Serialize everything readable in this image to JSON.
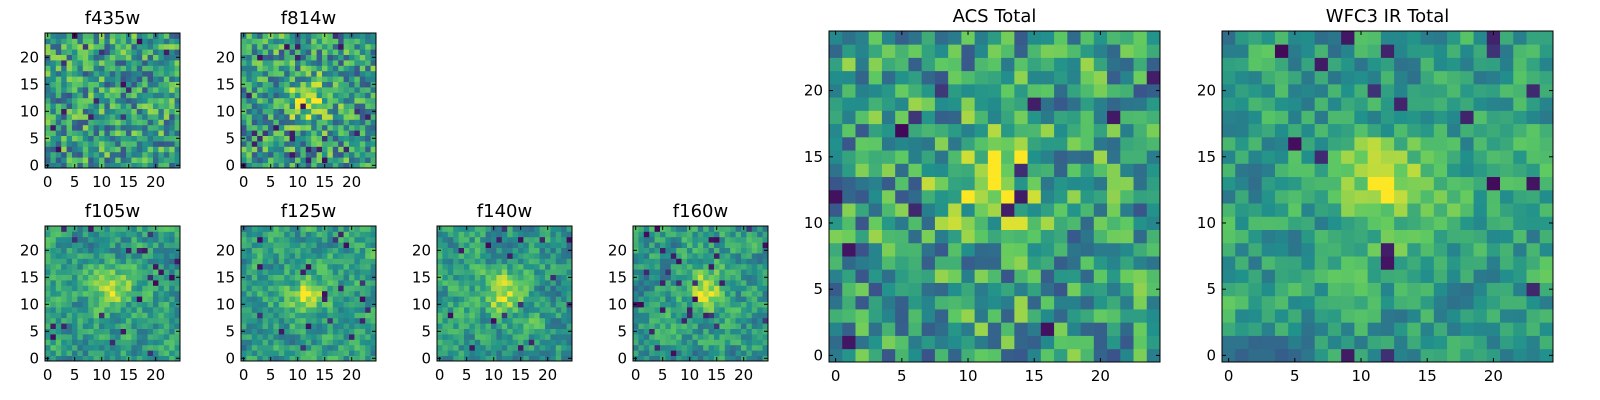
{
  "colormap": "viridis",
  "colormap_stops": [
    "#440154",
    "#3b528b",
    "#21918c",
    "#5ec962",
    "#fde725"
  ],
  "chart_data": [
    {
      "type": "heatmap",
      "title": "f435w",
      "xticks": [
        "0",
        "5",
        "10",
        "15",
        "20"
      ],
      "yticks": [
        "0",
        "5",
        "10",
        "15",
        "20"
      ],
      "xlim": [
        0,
        25
      ],
      "ylim": [
        0,
        25
      ],
      "grid_size": 25,
      "bright_center": null,
      "texture": "noisy",
      "seed": 11
    },
    {
      "type": "heatmap",
      "title": "f814w",
      "xticks": [
        "0",
        "5",
        "10",
        "15",
        "20"
      ],
      "yticks": [
        "0",
        "5",
        "10",
        "15",
        "20"
      ],
      "xlim": [
        0,
        25
      ],
      "ylim": [
        0,
        25
      ],
      "grid_size": 25,
      "bright_center": [
        12,
        12
      ],
      "texture": "noisy",
      "seed": 23
    },
    {
      "type": "heatmap",
      "title": "f105w",
      "xticks": [
        "0",
        "5",
        "10",
        "15",
        "20"
      ],
      "yticks": [
        "0",
        "5",
        "10",
        "15",
        "20"
      ],
      "xlim": [
        0,
        25
      ],
      "ylim": [
        0,
        25
      ],
      "grid_size": 25,
      "bright_center": [
        12,
        13
      ],
      "texture": "smooth",
      "seed": 37
    },
    {
      "type": "heatmap",
      "title": "f125w",
      "xticks": [
        "0",
        "5",
        "10",
        "15",
        "20"
      ],
      "yticks": [
        "0",
        "5",
        "10",
        "15",
        "20"
      ],
      "xlim": [
        0,
        25
      ],
      "ylim": [
        0,
        25
      ],
      "grid_size": 25,
      "bright_center": [
        12,
        12
      ],
      "texture": "smooth",
      "seed": 41
    },
    {
      "type": "heatmap",
      "title": "f140w",
      "xticks": [
        "0",
        "5",
        "10",
        "15",
        "20"
      ],
      "yticks": [
        "0",
        "5",
        "10",
        "15",
        "20"
      ],
      "xlim": [
        0,
        25
      ],
      "ylim": [
        0,
        25
      ],
      "grid_size": 25,
      "bright_center": [
        12,
        12
      ],
      "texture": "smooth",
      "seed": 53
    },
    {
      "type": "heatmap",
      "title": "f160w",
      "xticks": [
        "0",
        "5",
        "10",
        "15",
        "20"
      ],
      "yticks": [
        "0",
        "5",
        "10",
        "15",
        "20"
      ],
      "xlim": [
        0,
        25
      ],
      "ylim": [
        0,
        25
      ],
      "grid_size": 25,
      "bright_center": [
        13,
        13
      ],
      "texture": "smooth",
      "seed": 67
    },
    {
      "type": "heatmap",
      "title": "ACS Total",
      "xticks": [
        "0",
        "5",
        "10",
        "15",
        "20"
      ],
      "yticks": [
        "0",
        "5",
        "10",
        "15",
        "20"
      ],
      "xlim": [
        0,
        25
      ],
      "ylim": [
        0,
        25
      ],
      "grid_size": 25,
      "bright_center": [
        12,
        13
      ],
      "texture": "noisy",
      "seed": 79
    },
    {
      "type": "heatmap",
      "title": "WFC3 IR Total",
      "xticks": [
        "0",
        "5",
        "10",
        "15",
        "20"
      ],
      "yticks": [
        "0",
        "5",
        "10",
        "15",
        "20"
      ],
      "xlim": [
        0,
        25
      ],
      "ylim": [
        0,
        25
      ],
      "grid_size": 25,
      "bright_center": [
        12,
        13
      ],
      "texture": "smooth",
      "seed": 97
    }
  ]
}
